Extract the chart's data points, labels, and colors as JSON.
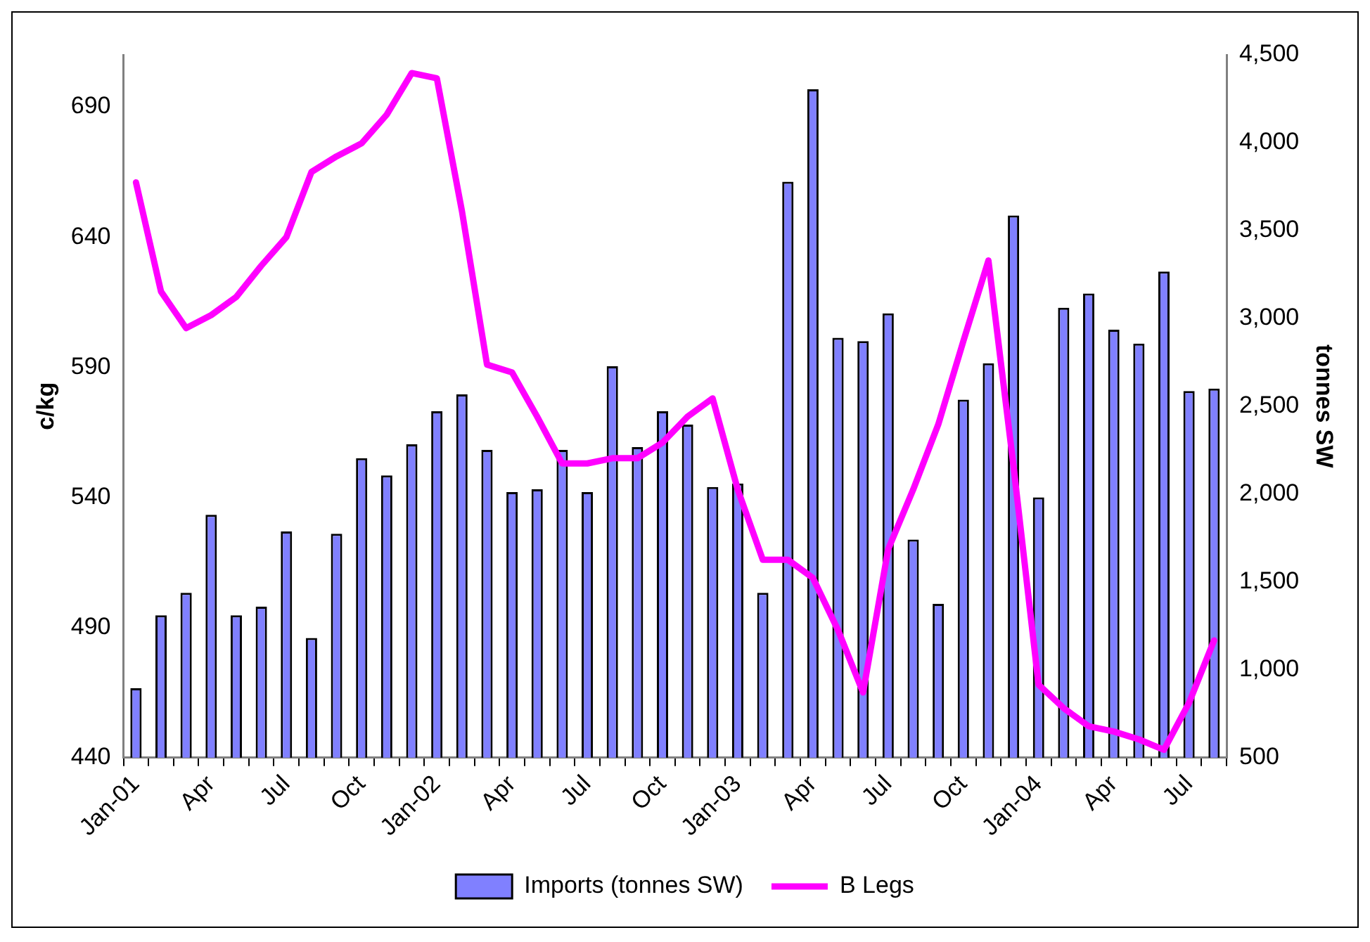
{
  "chart_data": {
    "type": "bar",
    "ylabel": "c/kg",
    "y2label": "tonnes SW",
    "categories": [
      "Jan-01",
      null,
      null,
      "Apr",
      null,
      null,
      "Jul",
      null,
      null,
      "Oct",
      null,
      null,
      "Jan-02",
      null,
      null,
      "Apr",
      null,
      null,
      "Jul",
      null,
      null,
      "Oct",
      null,
      null,
      "Jan-03",
      null,
      null,
      "Apr",
      null,
      null,
      "Jul",
      null,
      null,
      "Oct",
      null,
      null,
      "Jan-04",
      null,
      null,
      "Apr",
      null,
      null,
      "Jul",
      null
    ],
    "series": [
      {
        "name": "Imports (tonnes SW)",
        "axis": "y2",
        "color": "#8080ff",
        "values": [
          895,
          1310,
          1438,
          1882,
          1310,
          1359,
          1787,
          1181,
          1774,
          2204,
          2106,
          2283,
          2471,
          2567,
          2251,
          2011,
          2027,
          2251,
          2011,
          2727,
          2267,
          2471,
          2395,
          2040,
          2060,
          1438,
          3778,
          4304,
          2889,
          2870,
          3028,
          1741,
          1375,
          2537,
          2744,
          3586,
          1981,
          3060,
          3142,
          2935,
          2856,
          3267,
          2586,
          2600
        ]
      },
      {
        "name": "B Legs",
        "type": "line",
        "color": "#ff00ff",
        "values": [
          661,
          619,
          605,
          610,
          617,
          629,
          640,
          665,
          671,
          676,
          687,
          703,
          701,
          650,
          591,
          588,
          571,
          553,
          553,
          555,
          555,
          561,
          571,
          578,
          543,
          516,
          516,
          509,
          489,
          465,
          520,
          543,
          568,
          600,
          631,
          552,
          468,
          459,
          452,
          450,
          447,
          443,
          461,
          485
        ]
      }
    ],
    "ylim": [
      440,
      710
    ],
    "yticks": [
      440,
      490,
      540,
      590,
      640,
      690
    ],
    "y2lim": [
      500,
      4500
    ],
    "y2ticks": [
      {
        "value": 500,
        "label": "500"
      },
      {
        "value": 1000,
        "label": "1,000"
      },
      {
        "value": 1500,
        "label": "1,500"
      },
      {
        "value": 2000,
        "label": "2,000"
      },
      {
        "value": 2500,
        "label": "2,500"
      },
      {
        "value": 3000,
        "label": "3,000"
      },
      {
        "value": 3500,
        "label": "3,500"
      },
      {
        "value": 4000,
        "label": "4,000"
      },
      {
        "value": 4500,
        "label": "4,500"
      }
    ],
    "grid": false,
    "legend": "bottom",
    "marker": "none",
    "line_style": "solid"
  }
}
